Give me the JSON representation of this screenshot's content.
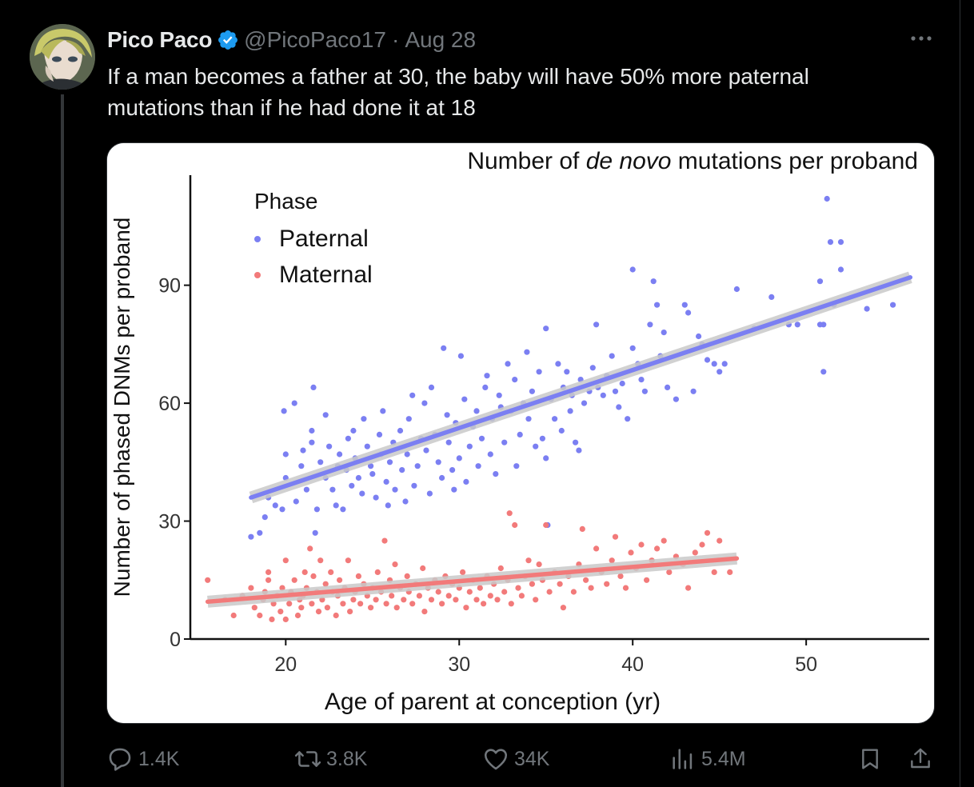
{
  "tweet": {
    "author_name": "Pico Paco",
    "handle": "@PicoPaco17",
    "separator": "·",
    "date": "Aug 28",
    "text_line1": "If a man becomes a father at 30, the baby will have 50% more paternal",
    "text_line2": "mutations than if he had done it at 18"
  },
  "icons": {
    "verified": "verified-badge-icon",
    "more": "more-options-icon",
    "reply": "reply-icon",
    "retweet": "retweet-icon",
    "like": "like-icon",
    "views": "views-icon",
    "bookmark": "bookmark-icon",
    "share": "share-icon"
  },
  "actions": {
    "replies": "1.4K",
    "retweets": "3.8K",
    "likes": "34K",
    "views": "5.4M"
  },
  "colors": {
    "background": "#000000",
    "text": "#e7e9ea",
    "muted": "#71767b",
    "verified": "#1d9bf0",
    "paternal": "#7b7ff2",
    "maternal": "#f27a7a"
  },
  "chart_data": {
    "type": "scatter",
    "title_pre": "Number of ",
    "title_italic": "de novo",
    "title_post": " mutations per proband",
    "xlabel": "Age of parent at conception (yr)",
    "ylabel": "Number of phased DNMs per proband",
    "xlim": [
      14.5,
      57
    ],
    "ylim": [
      0,
      118
    ],
    "xticks": [
      20,
      30,
      40,
      50
    ],
    "yticks": [
      0,
      30,
      60,
      90
    ],
    "grid": false,
    "legend": {
      "title": "Phase",
      "position": "top-left"
    },
    "series": [
      {
        "name": "Paternal",
        "color": "#7b7ff2",
        "trend": {
          "x": [
            18,
            56
          ],
          "y": [
            36,
            92
          ]
        },
        "points": [
          [
            18,
            26
          ],
          [
            18.5,
            27
          ],
          [
            18.8,
            31
          ],
          [
            19,
            36
          ],
          [
            19.4,
            34
          ],
          [
            19.8,
            33
          ],
          [
            20,
            41
          ],
          [
            20,
            47
          ],
          [
            19.9,
            58
          ],
          [
            20.5,
            60
          ],
          [
            20.6,
            35
          ],
          [
            20.9,
            44
          ],
          [
            21,
            48
          ],
          [
            21.2,
            38
          ],
          [
            21.5,
            50
          ],
          [
            21.5,
            53
          ],
          [
            21.6,
            64
          ],
          [
            21.8,
            33
          ],
          [
            21.7,
            27
          ],
          [
            22,
            45
          ],
          [
            22.3,
            41
          ],
          [
            22.3,
            57
          ],
          [
            22.5,
            49
          ],
          [
            22.7,
            38
          ],
          [
            22.9,
            34
          ],
          [
            23,
            44
          ],
          [
            23.1,
            47
          ],
          [
            23.3,
            33
          ],
          [
            23.5,
            43
          ],
          [
            23.6,
            51
          ],
          [
            23.8,
            39
          ],
          [
            23.9,
            53
          ],
          [
            24,
            46
          ],
          [
            24.2,
            41
          ],
          [
            24.4,
            37
          ],
          [
            24.5,
            56
          ],
          [
            24.7,
            49
          ],
          [
            24.9,
            44
          ],
          [
            25,
            42
          ],
          [
            25.2,
            36
          ],
          [
            25.4,
            52
          ],
          [
            25.5,
            47
          ],
          [
            25.6,
            58
          ],
          [
            25.8,
            40
          ],
          [
            25.9,
            34
          ],
          [
            26,
            45
          ],
          [
            26.2,
            50
          ],
          [
            26.3,
            38
          ],
          [
            26.6,
            53
          ],
          [
            26.7,
            43
          ],
          [
            26.9,
            35
          ],
          [
            27,
            47
          ],
          [
            27.1,
            56
          ],
          [
            27.3,
            62
          ],
          [
            27.4,
            39
          ],
          [
            27.6,
            44
          ],
          [
            27.8,
            51
          ],
          [
            28,
            60
          ],
          [
            28.1,
            48
          ],
          [
            28.3,
            37
          ],
          [
            28.4,
            64
          ],
          [
            28.6,
            52
          ],
          [
            28.8,
            45
          ],
          [
            29,
            41
          ],
          [
            29.1,
            74
          ],
          [
            29.3,
            57
          ],
          [
            29.4,
            50
          ],
          [
            29.6,
            43
          ],
          [
            29.7,
            38
          ],
          [
            29.8,
            55
          ],
          [
            30,
            46
          ],
          [
            30.1,
            72
          ],
          [
            30.3,
            61
          ],
          [
            30.4,
            40
          ],
          [
            30.6,
            49
          ],
          [
            30.8,
            54
          ],
          [
            31,
            58
          ],
          [
            31.1,
            44
          ],
          [
            31.3,
            51
          ],
          [
            31.5,
            64
          ],
          [
            31.6,
            67
          ],
          [
            31.8,
            47
          ],
          [
            31.9,
            56
          ],
          [
            32.1,
            42
          ],
          [
            32.3,
            62
          ],
          [
            32.4,
            59
          ],
          [
            32.6,
            50
          ],
          [
            32.8,
            70
          ],
          [
            33,
            58
          ],
          [
            33.2,
            66
          ],
          [
            33.3,
            44
          ],
          [
            33.5,
            52
          ],
          [
            33.7,
            60
          ],
          [
            33.9,
            73
          ],
          [
            34,
            56
          ],
          [
            34.2,
            63
          ],
          [
            34.4,
            49
          ],
          [
            34.6,
            68
          ],
          [
            34.8,
            51
          ],
          [
            35,
            79
          ],
          [
            35,
            46
          ],
          [
            35.1,
            29
          ],
          [
            35.3,
            61
          ],
          [
            35.5,
            56
          ],
          [
            35.7,
            70
          ],
          [
            35.9,
            53
          ],
          [
            36,
            64
          ],
          [
            36.2,
            68
          ],
          [
            36.4,
            58
          ],
          [
            36.5,
            62
          ],
          [
            36.7,
            50
          ],
          [
            36.9,
            48
          ],
          [
            37,
            66
          ],
          [
            37.2,
            60
          ],
          [
            37.5,
            63
          ],
          [
            37.7,
            69
          ],
          [
            37.9,
            80
          ],
          [
            38,
            64
          ],
          [
            38.3,
            62
          ],
          [
            38.5,
            67
          ],
          [
            38.8,
            72
          ],
          [
            39,
            63
          ],
          [
            39.2,
            59
          ],
          [
            39.4,
            65
          ],
          [
            39.7,
            56
          ],
          [
            40,
            94
          ],
          [
            40,
            74
          ],
          [
            40.3,
            70
          ],
          [
            40.5,
            66
          ],
          [
            40.7,
            63
          ],
          [
            41,
            80
          ],
          [
            41.2,
            91
          ],
          [
            41.4,
            85
          ],
          [
            41.6,
            72
          ],
          [
            41.8,
            78
          ],
          [
            42,
            64
          ],
          [
            42.5,
            61
          ],
          [
            43,
            85
          ],
          [
            43.2,
            83
          ],
          [
            43.5,
            63
          ],
          [
            43.8,
            77
          ],
          [
            44,
            75
          ],
          [
            44.3,
            71
          ],
          [
            44.7,
            70
          ],
          [
            45,
            68
          ],
          [
            45.3,
            70
          ],
          [
            46,
            89
          ],
          [
            47,
            79
          ],
          [
            48,
            87
          ],
          [
            49,
            80
          ],
          [
            49.5,
            80
          ],
          [
            50.8,
            91
          ],
          [
            50.8,
            80
          ],
          [
            51,
            80
          ],
          [
            51,
            68
          ],
          [
            51.2,
            112
          ],
          [
            51.4,
            101
          ],
          [
            51.6,
            85
          ],
          [
            52,
            101
          ],
          [
            52,
            94
          ],
          [
            53.5,
            84
          ],
          [
            55,
            85
          ]
        ]
      },
      {
        "name": "Maternal",
        "color": "#f27a7a",
        "trend": {
          "x": [
            15.5,
            46
          ],
          "y": [
            9.5,
            20.5
          ]
        },
        "points": [
          [
            15.5,
            15
          ],
          [
            16.5,
            10
          ],
          [
            17,
            6
          ],
          [
            17.5,
            11
          ],
          [
            18,
            13
          ],
          [
            18.2,
            8
          ],
          [
            18.5,
            6
          ],
          [
            18.7,
            10
          ],
          [
            18.8,
            12
          ],
          [
            19,
            15
          ],
          [
            19,
            17
          ],
          [
            19.2,
            5
          ],
          [
            19.3,
            9
          ],
          [
            19.5,
            11
          ],
          [
            19.7,
            7
          ],
          [
            19.8,
            13
          ],
          [
            20,
            20
          ],
          [
            20,
            5
          ],
          [
            20.2,
            9
          ],
          [
            20.3,
            12
          ],
          [
            20.5,
            15
          ],
          [
            20.7,
            6
          ],
          [
            20.8,
            10
          ],
          [
            20.9,
            8
          ],
          [
            21,
            11
          ],
          [
            21.1,
            17
          ],
          [
            21.2,
            13
          ],
          [
            21.4,
            23
          ],
          [
            21.5,
            9
          ],
          [
            21.6,
            16
          ],
          [
            21.8,
            12
          ],
          [
            21.9,
            7
          ],
          [
            22,
            20
          ],
          [
            22.1,
            10
          ],
          [
            22.3,
            14
          ],
          [
            22.4,
            8
          ],
          [
            22.6,
            17
          ],
          [
            22.7,
            12
          ],
          [
            22.9,
            6
          ],
          [
            23,
            11
          ],
          [
            23.1,
            15
          ],
          [
            23.3,
            9
          ],
          [
            23.4,
            13
          ],
          [
            23.6,
            20
          ],
          [
            23.7,
            7
          ],
          [
            23.9,
            10
          ],
          [
            24,
            12
          ],
          [
            24.2,
            16
          ],
          [
            24.3,
            9
          ],
          [
            24.5,
            14
          ],
          [
            24.7,
            11
          ],
          [
            24.9,
            8
          ],
          [
            25,
            13
          ],
          [
            25.2,
            10
          ],
          [
            25.3,
            17
          ],
          [
            25.5,
            12
          ],
          [
            25.7,
            25
          ],
          [
            25.8,
            9
          ],
          [
            26,
            15
          ],
          [
            26.1,
            11
          ],
          [
            26.3,
            19
          ],
          [
            26.4,
            8
          ],
          [
            26.6,
            13
          ],
          [
            26.8,
            10
          ],
          [
            27,
            16
          ],
          [
            27.1,
            12
          ],
          [
            27.3,
            9
          ],
          [
            27.5,
            14
          ],
          [
            27.7,
            11
          ],
          [
            27.9,
            18
          ],
          [
            28,
            7
          ],
          [
            28.2,
            13
          ],
          [
            28.4,
            10
          ],
          [
            28.6,
            15
          ],
          [
            28.8,
            12
          ],
          [
            29,
            9
          ],
          [
            29.2,
            16
          ],
          [
            29.4,
            11
          ],
          [
            29.6,
            14
          ],
          [
            29.8,
            10
          ],
          [
            30,
            13
          ],
          [
            30.2,
            17
          ],
          [
            30.4,
            8
          ],
          [
            30.6,
            12
          ],
          [
            30.8,
            15
          ],
          [
            31,
            10
          ],
          [
            31.2,
            13
          ],
          [
            31.4,
            9
          ],
          [
            31.6,
            16
          ],
          [
            31.8,
            11
          ],
          [
            32,
            14
          ],
          [
            32.2,
            10
          ],
          [
            32.4,
            18
          ],
          [
            32.6,
            12
          ],
          [
            32.8,
            15
          ],
          [
            32.9,
            32
          ],
          [
            33,
            9
          ],
          [
            33.2,
            29
          ],
          [
            33.4,
            13
          ],
          [
            33.6,
            11
          ],
          [
            33.8,
            16
          ],
          [
            34,
            20
          ],
          [
            34.2,
            14
          ],
          [
            34.4,
            10
          ],
          [
            34.6,
            19
          ],
          [
            34.8,
            15
          ],
          [
            35,
            29
          ],
          [
            35.2,
            12
          ],
          [
            35.5,
            17
          ],
          [
            35.8,
            14
          ],
          [
            36,
            8
          ],
          [
            36.3,
            16
          ],
          [
            36.6,
            12
          ],
          [
            36.9,
            19
          ],
          [
            37.1,
            28
          ],
          [
            37.3,
            15
          ],
          [
            37.6,
            13
          ],
          [
            37.9,
            23
          ],
          [
            38.2,
            17
          ],
          [
            38.5,
            14
          ],
          [
            38.8,
            20
          ],
          [
            39,
            26
          ],
          [
            39.3,
            16
          ],
          [
            39.6,
            13
          ],
          [
            39.9,
            22
          ],
          [
            40.2,
            18
          ],
          [
            40.5,
            24
          ],
          [
            40.8,
            15
          ],
          [
            41.1,
            20
          ],
          [
            41.4,
            23
          ],
          [
            41.8,
            25
          ],
          [
            42.1,
            17
          ],
          [
            42.5,
            21
          ],
          [
            42.9,
            19
          ],
          [
            43.2,
            13
          ],
          [
            43.6,
            22
          ],
          [
            44,
            24
          ],
          [
            44.3,
            27
          ],
          [
            44.7,
            17
          ],
          [
            45,
            25
          ],
          [
            45.6,
            17
          ]
        ]
      }
    ]
  }
}
